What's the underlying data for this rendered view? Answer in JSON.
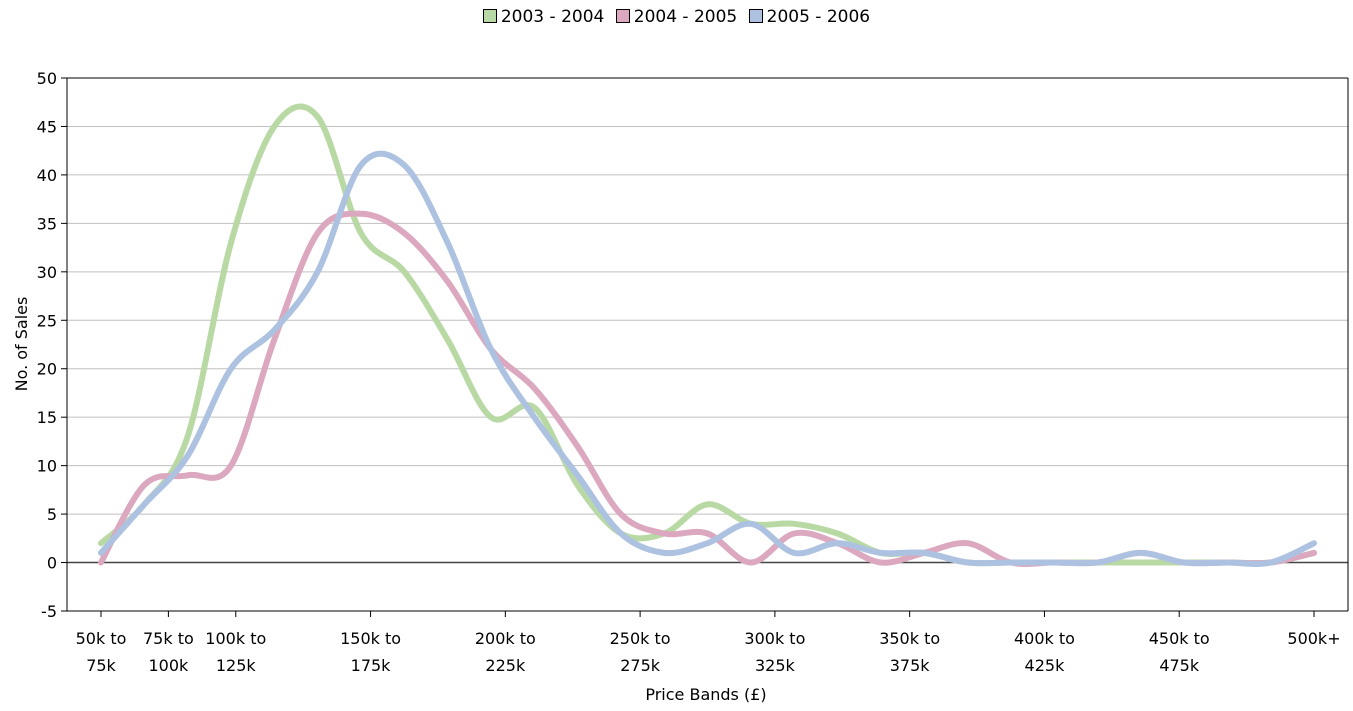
{
  "chart_data": {
    "type": "line",
    "title": "",
    "xlabel": "Price Bands (£)",
    "ylabel": "No. of Sales",
    "ylim": [
      -5,
      50
    ],
    "ytick_step": 5,
    "grid": true,
    "legend_position": "top-center",
    "smooth": true,
    "categories": [
      [
        "50k to",
        "75k"
      ],
      [
        "75k to",
        "100k"
      ],
      [
        "100k to",
        "125k"
      ],
      [
        "150k to",
        "175k"
      ],
      [
        "200k to",
        "225k"
      ],
      [
        "250k to",
        "275k"
      ],
      [
        "300k to",
        "325k"
      ],
      [
        "350k to",
        "375k"
      ],
      [
        "400k to",
        "425k"
      ],
      [
        "450k to",
        "475k"
      ],
      [
        "500k+"
      ]
    ],
    "series": [
      {
        "name": "2003 - 2004",
        "color": "#b9d9a4",
        "points": [
          [
            0,
            2
          ],
          [
            0.5,
            6
          ],
          [
            1,
            13
          ],
          [
            1.5,
            33
          ],
          [
            2,
            45
          ],
          [
            2.5,
            46
          ],
          [
            3,
            34
          ],
          [
            3.5,
            30
          ],
          [
            4,
            23
          ],
          [
            4.5,
            15
          ],
          [
            5,
            16
          ],
          [
            5.5,
            8
          ],
          [
            6,
            3
          ],
          [
            6.5,
            3
          ],
          [
            7,
            6
          ],
          [
            7.5,
            4
          ],
          [
            8,
            4
          ],
          [
            8.5,
            3
          ],
          [
            9,
            1
          ],
          [
            9.5,
            1
          ],
          [
            10,
            0
          ],
          [
            10.5,
            0
          ],
          [
            11,
            0
          ],
          [
            11.5,
            0
          ],
          [
            12,
            0
          ],
          [
            12.5,
            0
          ],
          [
            13,
            0
          ],
          [
            13.5,
            0
          ],
          [
            14,
            1
          ]
        ]
      },
      {
        "name": "2004 - 2005",
        "color": "#dba8bf",
        "points": [
          [
            0,
            0
          ],
          [
            0.5,
            8
          ],
          [
            1,
            9
          ],
          [
            1.5,
            10
          ],
          [
            2,
            23
          ],
          [
            2.5,
            34
          ],
          [
            3,
            36
          ],
          [
            3.5,
            34
          ],
          [
            4,
            29
          ],
          [
            4.5,
            22
          ],
          [
            5,
            18
          ],
          [
            5.5,
            12
          ],
          [
            6,
            5
          ],
          [
            6.5,
            3
          ],
          [
            7,
            3
          ],
          [
            7.5,
            0
          ],
          [
            8,
            3
          ],
          [
            8.5,
            2
          ],
          [
            9,
            0
          ],
          [
            9.5,
            1
          ],
          [
            10,
            2
          ],
          [
            10.5,
            0
          ],
          [
            11,
            0
          ],
          [
            11.5,
            0
          ],
          [
            12,
            1
          ],
          [
            12.5,
            0
          ],
          [
            13,
            0
          ],
          [
            13.5,
            0
          ],
          [
            14,
            1
          ]
        ]
      },
      {
        "name": "2005 - 2006",
        "color": "#adc2e1",
        "points": [
          [
            0,
            1
          ],
          [
            0.5,
            6
          ],
          [
            1,
            11
          ],
          [
            1.5,
            20
          ],
          [
            2,
            24
          ],
          [
            2.5,
            30
          ],
          [
            3,
            41
          ],
          [
            3.5,
            41
          ],
          [
            4,
            33
          ],
          [
            4.5,
            22
          ],
          [
            5,
            15
          ],
          [
            5.5,
            9
          ],
          [
            6,
            3
          ],
          [
            6.5,
            1
          ],
          [
            7,
            2
          ],
          [
            7.5,
            4
          ],
          [
            8,
            1
          ],
          [
            8.5,
            2
          ],
          [
            9,
            1
          ],
          [
            9.5,
            1
          ],
          [
            10,
            0
          ],
          [
            10.5,
            0
          ],
          [
            11,
            0
          ],
          [
            11.5,
            0
          ],
          [
            12,
            1
          ],
          [
            12.5,
            0
          ],
          [
            13,
            0
          ],
          [
            13.5,
            0
          ],
          [
            14,
            2
          ]
        ]
      }
    ]
  }
}
